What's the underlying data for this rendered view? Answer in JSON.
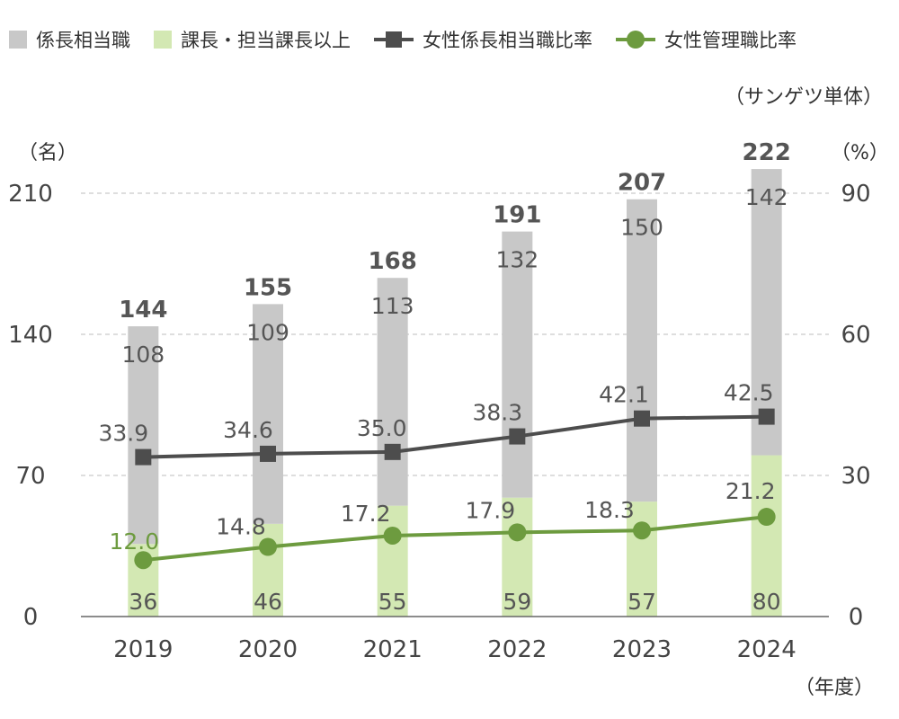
{
  "legend": [
    {
      "label": "係長相当職",
      "kind": "bar",
      "color": "#c8c8c8"
    },
    {
      "label": "課長・担当課長以上",
      "kind": "bar",
      "color": "#d3e8b3"
    },
    {
      "label": "女性係長相当職比率",
      "kind": "line-square",
      "color": "#4d4d4d"
    },
    {
      "label": "女性管理職比率",
      "kind": "line-circle",
      "color": "#6d9b3f"
    }
  ],
  "note": "（サンゲツ単体）",
  "left_unit": "（名）",
  "right_unit": "（%）",
  "x_unit": "（年度）",
  "chart_data": {
    "type": "bar+line",
    "categories": [
      "2019",
      "2020",
      "2021",
      "2022",
      "2023",
      "2024"
    ],
    "bar_series": [
      {
        "name": "課長・担当課長以上",
        "values": [
          36,
          46,
          55,
          59,
          57,
          80
        ],
        "color": "#d3e8b3",
        "label_color": "#555555"
      },
      {
        "name": "係長相当職",
        "values": [
          108,
          109,
          113,
          132,
          150,
          142
        ],
        "color": "#c8c8c8",
        "label_color": "#555555"
      }
    ],
    "totals": [
      144,
      155,
      168,
      191,
      207,
      222
    ],
    "line_series": [
      {
        "name": "女性係長相当職比率",
        "values": [
          33.9,
          34.6,
          35.0,
          38.3,
          42.1,
          42.5
        ],
        "labels": [
          "33.9",
          "34.6",
          "35.0",
          "38.3",
          "42.1",
          "42.5"
        ],
        "color": "#4d4d4d",
        "marker": "square"
      },
      {
        "name": "女性管理職比率",
        "values": [
          12.0,
          14.8,
          17.2,
          17.9,
          18.3,
          21.2
        ],
        "labels": [
          "12.0",
          "14.8",
          "17.2",
          "17.9",
          "18.3",
          "21.2"
        ],
        "color": "#6d9b3f",
        "marker": "circle"
      }
    ],
    "y_left": {
      "min": 0,
      "max": 210,
      "ticks": [
        "0",
        "70",
        "140",
        "210"
      ]
    },
    "y_right": {
      "min": 0,
      "max": 90,
      "ticks": [
        "0",
        "30",
        "60",
        "90"
      ]
    },
    "grid": "dashed horizontal"
  }
}
